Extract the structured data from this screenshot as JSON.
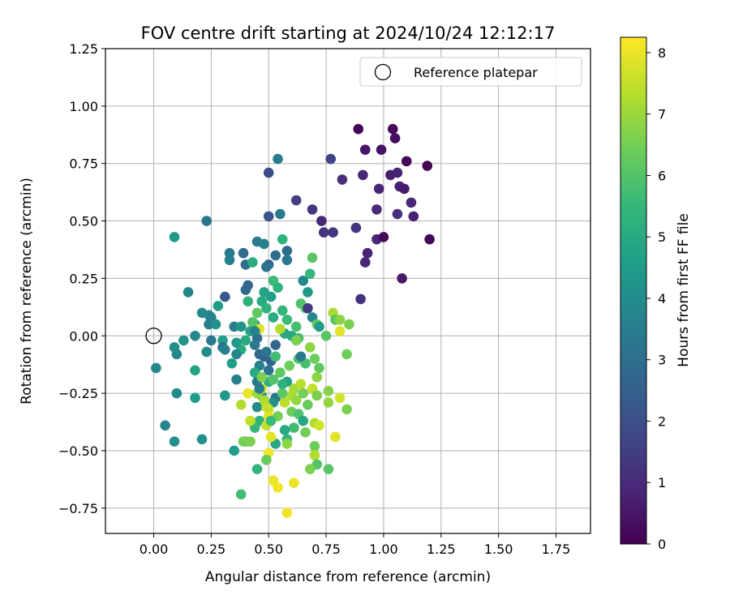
{
  "chart_data": {
    "type": "scatter",
    "title": "FOV centre drift starting at 2024/10/24 12:12:17",
    "xlabel": "Angular distance from reference (arcmin)",
    "ylabel": "Rotation from reference (arcmin)",
    "xlim": [
      -0.21,
      1.9
    ],
    "ylim": [
      -0.86,
      1.25
    ],
    "xticks": [
      "0.00",
      "0.25",
      "0.50",
      "0.75",
      "1.00",
      "1.25",
      "1.50",
      "1.75"
    ],
    "yticks": [
      "−0.75",
      "−0.50",
      "−0.25",
      "0.00",
      "0.25",
      "0.50",
      "0.75",
      "1.00",
      "1.25"
    ],
    "grid": true,
    "legend_position": "top-right",
    "legend": [
      "Reference platepar"
    ],
    "reference_point": {
      "x": 0.0,
      "y": 0.0,
      "name": "Reference platepar"
    },
    "colorbar": {
      "label": "Hours from first FF file",
      "min": 0,
      "max": 8.25,
      "ticks": [
        "0",
        "1",
        "2",
        "3",
        "4",
        "5",
        "6",
        "7",
        "8"
      ],
      "colormap": "viridis"
    },
    "points": [
      [
        0.89,
        0.9,
        0.1
      ],
      [
        1.04,
        0.9,
        0.2
      ],
      [
        1.05,
        0.86,
        0.3
      ],
      [
        0.92,
        0.81,
        0.5
      ],
      [
        0.99,
        0.81,
        0.4
      ],
      [
        1.1,
        0.76,
        0.1
      ],
      [
        1.19,
        0.74,
        0.0
      ],
      [
        1.03,
        0.7,
        0.7
      ],
      [
        0.82,
        0.68,
        1.1
      ],
      [
        0.91,
        0.7,
        0.9
      ],
      [
        1.06,
        0.71,
        0.8
      ],
      [
        0.98,
        0.64,
        0.9
      ],
      [
        1.07,
        0.65,
        0.7
      ],
      [
        1.09,
        0.64,
        0.6
      ],
      [
        1.12,
        0.58,
        0.9
      ],
      [
        1.13,
        0.52,
        0.8
      ],
      [
        0.97,
        0.55,
        1.0
      ],
      [
        1.06,
        0.53,
        1.1
      ],
      [
        0.93,
        0.36,
        0.8
      ],
      [
        0.92,
        0.32,
        0.9
      ],
      [
        0.97,
        0.42,
        0.9
      ],
      [
        1.0,
        0.43,
        0.2
      ],
      [
        1.08,
        0.25,
        0.6
      ],
      [
        1.2,
        0.42,
        0.1
      ],
      [
        0.9,
        0.16,
        1.2
      ],
      [
        0.88,
        0.47,
        1.2
      ],
      [
        0.78,
        0.45,
        1.3
      ],
      [
        0.74,
        0.45,
        1.2
      ],
      [
        0.73,
        0.5,
        0.9
      ],
      [
        0.69,
        0.55,
        1.3
      ],
      [
        0.62,
        0.59,
        1.5
      ],
      [
        0.77,
        0.77,
        1.7
      ],
      [
        0.5,
        0.71,
        1.9
      ],
      [
        0.5,
        0.52,
        2.1
      ],
      [
        0.54,
        0.77,
        3.5
      ],
      [
        0.55,
        0.53,
        3.4
      ],
      [
        0.23,
        0.5,
        3.2
      ],
      [
        0.45,
        0.41,
        3.4
      ],
      [
        0.48,
        0.4,
        3.6
      ],
      [
        0.53,
        0.35,
        2.9
      ],
      [
        0.5,
        0.31,
        2.8
      ],
      [
        0.49,
        0.3,
        3.1
      ],
      [
        0.58,
        0.37,
        2.9
      ],
      [
        0.58,
        0.33,
        3.3
      ],
      [
        0.33,
        0.33,
        3.6
      ],
      [
        0.33,
        0.36,
        3.4
      ],
      [
        0.39,
        0.36,
        2.9
      ],
      [
        0.4,
        0.31,
        3.0
      ],
      [
        0.43,
        0.32,
        5.1
      ],
      [
        0.56,
        0.42,
        5.3
      ],
      [
        0.4,
        0.2,
        2.9
      ],
      [
        0.41,
        0.22,
        2.7
      ],
      [
        0.31,
        0.17,
        2.3
      ],
      [
        0.15,
        0.19,
        3.8
      ],
      [
        0.09,
        0.43,
        4.5
      ],
      [
        0.21,
        0.1,
        3.9
      ],
      [
        0.24,
        0.09,
        3.9
      ],
      [
        0.25,
        0.08,
        3.7
      ],
      [
        0.24,
        0.05,
        3.5
      ],
      [
        0.27,
        0.05,
        4.2
      ],
      [
        0.28,
        0.13,
        4.6
      ],
      [
        0.35,
        0.04,
        3.5
      ],
      [
        0.18,
        0.0,
        3.8
      ],
      [
        0.13,
        -0.02,
        4.2
      ],
      [
        0.1,
        -0.08,
        3.8
      ],
      [
        0.09,
        -0.05,
        4.1
      ],
      [
        0.25,
        -0.02,
        3.4
      ],
      [
        0.3,
        -0.02,
        4.6
      ],
      [
        0.3,
        -0.05,
        3.1
      ],
      [
        0.31,
        -0.06,
        3.6
      ],
      [
        0.23,
        -0.07,
        4.0
      ],
      [
        0.01,
        -0.14,
        3.8
      ],
      [
        0.18,
        -0.15,
        4.8
      ],
      [
        0.1,
        -0.25,
        3.9
      ],
      [
        0.05,
        -0.39,
        3.8
      ],
      [
        0.09,
        -0.46,
        4.1
      ],
      [
        0.21,
        -0.45,
        4.1
      ],
      [
        0.18,
        -0.27,
        4.6
      ],
      [
        0.31,
        -0.26,
        4.4
      ],
      [
        0.36,
        -0.19,
        3.6
      ],
      [
        0.38,
        0.04,
        4.2
      ],
      [
        0.38,
        -0.06,
        5.1
      ],
      [
        0.4,
        -0.02,
        5.0
      ],
      [
        0.42,
        0.02,
        4.8
      ],
      [
        0.44,
        0.05,
        4.6
      ],
      [
        0.36,
        -0.03,
        4.4
      ],
      [
        0.34,
        -0.12,
        4.6
      ],
      [
        0.45,
        -0.01,
        3.0
      ],
      [
        0.44,
        -0.04,
        3.3
      ],
      [
        0.46,
        -0.08,
        2.8
      ],
      [
        0.48,
        -0.09,
        2.7
      ],
      [
        0.49,
        -0.07,
        3.2
      ],
      [
        0.51,
        -0.11,
        2.7
      ],
      [
        0.46,
        -0.13,
        3.6
      ],
      [
        0.5,
        -0.15,
        3.1
      ],
      [
        0.44,
        -0.16,
        5.0
      ],
      [
        0.45,
        -0.2,
        3.4
      ],
      [
        0.5,
        -0.2,
        5.2
      ],
      [
        0.47,
        -0.26,
        3.8
      ],
      [
        0.45,
        -0.31,
        3.9
      ],
      [
        0.53,
        -0.27,
        3.1
      ],
      [
        0.52,
        -0.29,
        4.2
      ],
      [
        0.46,
        -0.37,
        5.2
      ],
      [
        0.44,
        -0.4,
        5.5
      ],
      [
        0.4,
        -0.46,
        5.4
      ],
      [
        0.45,
        -0.58,
        5.4
      ],
      [
        0.38,
        -0.69,
        5.7
      ],
      [
        0.35,
        -0.5,
        4.6
      ],
      [
        0.41,
        0.15,
        5.3
      ],
      [
        0.47,
        0.15,
        5.0
      ],
      [
        0.48,
        0.19,
        4.8
      ],
      [
        0.51,
        0.17,
        4.6
      ],
      [
        0.52,
        0.24,
        5.6
      ],
      [
        0.54,
        0.21,
        5.3
      ],
      [
        0.49,
        0.12,
        5.3
      ],
      [
        0.52,
        0.08,
        5.1
      ],
      [
        0.56,
        0.11,
        5.4
      ],
      [
        0.58,
        0.07,
        5.6
      ],
      [
        0.57,
        0.01,
        4.9
      ],
      [
        0.6,
        0.0,
        4.9
      ],
      [
        0.63,
        -0.01,
        5.8
      ],
      [
        0.62,
        0.04,
        5.8
      ],
      [
        0.64,
        0.14,
        5.9
      ],
      [
        0.66,
        0.12,
        6.2
      ],
      [
        0.67,
        0.19,
        4.4
      ],
      [
        0.68,
        0.27,
        5.5
      ],
      [
        0.69,
        0.34,
        6.1
      ],
      [
        0.65,
        0.24,
        3.9
      ],
      [
        0.67,
        0.12,
        1.4
      ],
      [
        0.69,
        0.08,
        3.9
      ],
      [
        0.71,
        0.05,
        6.3
      ],
      [
        0.72,
        0.04,
        4.5
      ],
      [
        0.75,
        0.0,
        6.1
      ],
      [
        0.78,
        0.1,
        7.2
      ],
      [
        0.79,
        0.07,
        6.1
      ],
      [
        0.81,
        0.07,
        6.8
      ],
      [
        0.85,
        0.05,
        6.6
      ],
      [
        0.81,
        0.02,
        7.9
      ],
      [
        0.84,
        -0.08,
        6.4
      ],
      [
        0.68,
        -0.05,
        6.8
      ],
      [
        0.63,
        -0.1,
        5.9
      ],
      [
        0.66,
        -0.12,
        5.8
      ],
      [
        0.7,
        -0.1,
        6.4
      ],
      [
        0.72,
        -0.14,
        6.2
      ],
      [
        0.59,
        -0.13,
        6.4
      ],
      [
        0.58,
        -0.2,
        4.7
      ],
      [
        0.61,
        -0.23,
        7.1
      ],
      [
        0.64,
        -0.21,
        7.4
      ],
      [
        0.6,
        -0.26,
        7.2
      ],
      [
        0.62,
        -0.28,
        6.9
      ],
      [
        0.65,
        -0.25,
        6.5
      ],
      [
        0.69,
        -0.23,
        7.5
      ],
      [
        0.71,
        -0.26,
        6.6
      ],
      [
        0.76,
        -0.24,
        6.7
      ],
      [
        0.76,
        -0.29,
        6.9
      ],
      [
        0.81,
        -0.27,
        7.7
      ],
      [
        0.84,
        -0.32,
        6.6
      ],
      [
        0.57,
        -0.29,
        7.4
      ],
      [
        0.6,
        -0.33,
        6.4
      ],
      [
        0.63,
        -0.34,
        5.9
      ],
      [
        0.65,
        -0.37,
        4.9
      ],
      [
        0.66,
        -0.42,
        6.5
      ],
      [
        0.61,
        -0.4,
        5.7
      ],
      [
        0.58,
        -0.45,
        5.4
      ],
      [
        0.58,
        -0.47,
        6.8
      ],
      [
        0.53,
        -0.47,
        4.9
      ],
      [
        0.57,
        -0.41,
        5.0
      ],
      [
        0.7,
        -0.38,
        7.3
      ],
      [
        0.72,
        -0.39,
        7.7
      ],
      [
        0.7,
        -0.48,
        6.4
      ],
      [
        0.7,
        -0.52,
        7.3
      ],
      [
        0.71,
        -0.56,
        6.0
      ],
      [
        0.68,
        -0.58,
        6.6
      ],
      [
        0.76,
        -0.58,
        6.1
      ],
      [
        0.79,
        -0.44,
        7.9
      ],
      [
        0.61,
        -0.64,
        8.0
      ],
      [
        0.54,
        -0.66,
        8.1
      ],
      [
        0.52,
        -0.63,
        8.0
      ],
      [
        0.58,
        -0.77,
        8.1
      ],
      [
        0.39,
        -0.46,
        6.5
      ],
      [
        0.42,
        -0.46,
        6.6
      ],
      [
        0.42,
        -0.37,
        7.5
      ],
      [
        0.38,
        -0.3,
        7.3
      ],
      [
        0.41,
        -0.25,
        8.0
      ],
      [
        0.47,
        -0.23,
        7.7
      ],
      [
        0.45,
        -0.25,
        7.0
      ],
      [
        0.48,
        -0.28,
        7.2
      ],
      [
        0.5,
        -0.32,
        7.6
      ],
      [
        0.5,
        -0.35,
        7.9
      ],
      [
        0.49,
        -0.39,
        7.5
      ],
      [
        0.51,
        -0.44,
        7.9
      ],
      [
        0.5,
        -0.51,
        8.1
      ],
      [
        0.49,
        -0.54,
        6.3
      ],
      [
        0.54,
        -0.35,
        6.5
      ],
      [
        0.56,
        -0.25,
        6.2
      ],
      [
        0.47,
        -0.18,
        6.6
      ],
      [
        0.52,
        -0.19,
        6.0
      ],
      [
        0.55,
        -0.16,
        6.2
      ],
      [
        0.53,
        -0.09,
        5.7
      ],
      [
        0.55,
        0.03,
        7.3
      ],
      [
        0.46,
        0.03,
        7.9
      ],
      [
        0.43,
        0.06,
        6.0
      ],
      [
        0.45,
        0.1,
        6.2
      ],
      [
        0.62,
        -0.02,
        6.6
      ],
      [
        0.64,
        -0.09,
        3.3
      ],
      [
        0.46,
        -0.23,
        3.4
      ],
      [
        0.51,
        -0.37,
        5.6
      ],
      [
        0.49,
        -0.31,
        7.5
      ],
      [
        0.56,
        -0.21,
        5.3
      ],
      [
        0.67,
        -0.3,
        6.3
      ],
      [
        0.71,
        -0.18,
        6.8
      ],
      [
        0.44,
        0.02,
        3.6
      ],
      [
        0.36,
        -0.08,
        3.8
      ],
      [
        0.53,
        -0.04,
        2.7
      ]
    ]
  }
}
